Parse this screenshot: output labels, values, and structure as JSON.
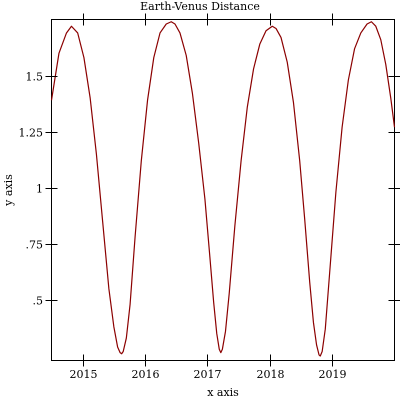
{
  "chart_data": {
    "type": "line",
    "title": "Earth-Venus Distance",
    "xlabel": "x axis",
    "ylabel": "y axis",
    "xlim": [
      2014.5,
      2020.0
    ],
    "ylim": [
      0.23,
      1.75
    ],
    "x_ticks": [
      {
        "value": 2015,
        "label": "2015"
      },
      {
        "value": 2016,
        "label": "2016"
      },
      {
        "value": 2017,
        "label": "2017"
      },
      {
        "value": 2018,
        "label": "2018"
      },
      {
        "value": 2019,
        "label": "2019"
      }
    ],
    "y_ticks": [
      {
        "value": 0.5,
        "label": ".5"
      },
      {
        "value": 0.75,
        "label": ".75"
      },
      {
        "value": 1.0,
        "label": "1"
      },
      {
        "value": 1.25,
        "label": "1.25"
      },
      {
        "value": 1.5,
        "label": "1.5"
      }
    ],
    "grid": false,
    "series": [
      {
        "color": "#8b0000",
        "x": [
          2014.5,
          2014.62,
          2014.74,
          2014.82,
          2014.92,
          2015.02,
          2015.12,
          2015.22,
          2015.32,
          2015.42,
          2015.5,
          2015.56,
          2015.6,
          2015.625,
          2015.65,
          2015.7,
          2015.76,
          2015.84,
          2015.94,
          2016.04,
          2016.14,
          2016.24,
          2016.34,
          2016.42,
          2016.48,
          2016.56,
          2016.66,
          2016.76,
          2016.86,
          2016.96,
          2017.04,
          2017.1,
          2017.15,
          2017.19,
          2017.215,
          2017.24,
          2017.29,
          2017.35,
          2017.44,
          2017.54,
          2017.64,
          2017.74,
          2017.84,
          2017.94,
          2018.04,
          2018.1,
          2018.18,
          2018.28,
          2018.38,
          2018.48,
          2018.56,
          2018.64,
          2018.7,
          2018.75,
          2018.79,
          2018.81,
          2018.84,
          2018.89,
          2018.96,
          2019.06,
          2019.16,
          2019.26,
          2019.36,
          2019.46,
          2019.56,
          2019.63,
          2019.7,
          2019.78,
          2019.86,
          2019.94,
          2020.0
        ],
        "y": [
          1.39,
          1.6,
          1.69,
          1.72,
          1.69,
          1.58,
          1.4,
          1.15,
          0.85,
          0.55,
          0.38,
          0.29,
          0.265,
          0.26,
          0.27,
          0.33,
          0.48,
          0.78,
          1.12,
          1.39,
          1.58,
          1.69,
          1.73,
          1.74,
          1.73,
          1.69,
          1.59,
          1.42,
          1.2,
          0.95,
          0.69,
          0.49,
          0.35,
          0.28,
          0.265,
          0.28,
          0.36,
          0.53,
          0.83,
          1.12,
          1.36,
          1.53,
          1.64,
          1.7,
          1.72,
          1.71,
          1.67,
          1.56,
          1.38,
          1.12,
          0.86,
          0.58,
          0.4,
          0.3,
          0.255,
          0.25,
          0.27,
          0.37,
          0.62,
          0.98,
          1.27,
          1.48,
          1.62,
          1.69,
          1.73,
          1.74,
          1.72,
          1.66,
          1.55,
          1.4,
          1.27
        ]
      }
    ]
  }
}
